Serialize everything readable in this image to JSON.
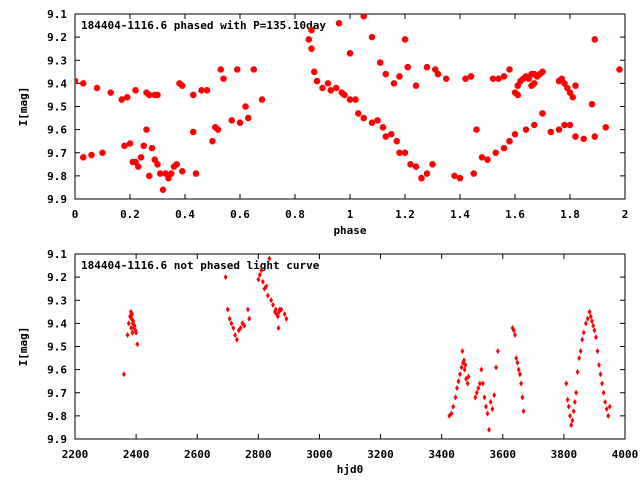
{
  "chart_data": [
    {
      "type": "scatter",
      "title": "184404-1116.6 phased with P=135.10day",
      "xlabel": "phase",
      "ylabel": "I[mag]",
      "xlim": [
        0,
        2
      ],
      "ylim": [
        9.9,
        9.1
      ],
      "y_inverted": true,
      "grid": false,
      "marker_color": "#ff0000",
      "xticks": [
        "0",
        "0.2",
        "0.4",
        "0.6",
        "0.8",
        "1",
        "1.2",
        "1.4",
        "1.6",
        "1.8",
        "2"
      ],
      "yticks": [
        "9.1",
        "9.2",
        "9.3",
        "9.4",
        "9.5",
        "9.6",
        "9.7",
        "9.8",
        "9.9"
      ],
      "points": [
        [
          0.0,
          9.39
        ],
        [
          0.03,
          9.4
        ],
        [
          0.08,
          9.42
        ],
        [
          0.13,
          9.44
        ],
        [
          0.17,
          9.47
        ],
        [
          0.19,
          9.46
        ],
        [
          0.22,
          9.43
        ],
        [
          0.26,
          9.44
        ],
        [
          0.27,
          9.45
        ],
        [
          0.29,
          9.45
        ],
        [
          0.3,
          9.45
        ],
        [
          0.38,
          9.4
        ],
        [
          0.39,
          9.41
        ],
        [
          0.43,
          9.45
        ],
        [
          0.46,
          9.43
        ],
        [
          0.48,
          9.43
        ],
        [
          0.53,
          9.34
        ],
        [
          0.54,
          9.38
        ],
        [
          0.59,
          9.34
        ],
        [
          0.62,
          9.5
        ],
        [
          0.68,
          9.47
        ],
        [
          0.63,
          9.55
        ],
        [
          0.6,
          9.57
        ],
        [
          0.57,
          9.56
        ],
        [
          0.52,
          9.6
        ],
        [
          0.51,
          9.59
        ],
        [
          0.5,
          9.65
        ],
        [
          0.43,
          9.61
        ],
        [
          0.39,
          9.78
        ],
        [
          0.37,
          9.75
        ],
        [
          0.36,
          9.76
        ],
        [
          0.35,
          9.79
        ],
        [
          0.34,
          9.81
        ],
        [
          0.33,
          9.79
        ],
        [
          0.31,
          9.79
        ],
        [
          0.3,
          9.75
        ],
        [
          0.29,
          9.73
        ],
        [
          0.28,
          9.68
        ],
        [
          0.26,
          9.6
        ],
        [
          0.25,
          9.67
        ],
        [
          0.24,
          9.72
        ],
        [
          0.23,
          9.76
        ],
        [
          0.22,
          9.74
        ],
        [
          0.2,
          9.66
        ],
        [
          0.18,
          9.67
        ],
        [
          0.1,
          9.7
        ],
        [
          0.06,
          9.71
        ],
        [
          0.03,
          9.72
        ],
        [
          0.27,
          9.8
        ],
        [
          0.32,
          9.86
        ],
        [
          0.21,
          9.74
        ],
        [
          0.85,
          9.21
        ],
        [
          0.86,
          9.25
        ],
        [
          0.87,
          9.35
        ],
        [
          0.88,
          9.39
        ],
        [
          0.9,
          9.42
        ],
        [
          0.92,
          9.4
        ],
        [
          0.93,
          9.43
        ],
        [
          0.95,
          9.42
        ],
        [
          0.97,
          9.44
        ],
        [
          0.98,
          9.45
        ],
        [
          1.0,
          9.47
        ],
        [
          1.02,
          9.47
        ],
        [
          1.03,
          9.53
        ],
        [
          1.05,
          9.55
        ],
        [
          1.08,
          9.57
        ],
        [
          1.1,
          9.56
        ],
        [
          1.12,
          9.59
        ],
        [
          1.13,
          9.63
        ],
        [
          1.15,
          9.62
        ],
        [
          1.17,
          9.65
        ],
        [
          1.18,
          9.7
        ],
        [
          1.2,
          9.7
        ],
        [
          1.22,
          9.75
        ],
        [
          1.24,
          9.76
        ],
        [
          1.26,
          9.81
        ],
        [
          1.28,
          9.79
        ],
        [
          1.3,
          9.75
        ],
        [
          1.38,
          9.8
        ],
        [
          1.4,
          9.81
        ],
        [
          1.45,
          9.79
        ],
        [
          1.48,
          9.72
        ],
        [
          1.5,
          9.73
        ],
        [
          1.53,
          9.7
        ],
        [
          1.56,
          9.68
        ],
        [
          1.58,
          9.65
        ],
        [
          1.6,
          9.62
        ],
        [
          1.64,
          9.6
        ],
        [
          1.67,
          9.58
        ],
        [
          1.7,
          9.53
        ],
        [
          1.73,
          9.61
        ],
        [
          1.76,
          9.6
        ],
        [
          1.78,
          9.58
        ],
        [
          1.8,
          9.58
        ],
        [
          1.82,
          9.63
        ],
        [
          1.85,
          9.64
        ],
        [
          1.89,
          9.63
        ],
        [
          1.93,
          9.59
        ],
        [
          0.86,
          9.17
        ],
        [
          1.0,
          9.27
        ],
        [
          0.96,
          9.14
        ],
        [
          1.05,
          9.11
        ],
        [
          1.08,
          9.2
        ],
        [
          1.11,
          9.31
        ],
        [
          1.13,
          9.36
        ],
        [
          1.16,
          9.4
        ],
        [
          1.18,
          9.37
        ],
        [
          1.2,
          9.21
        ],
        [
          1.21,
          9.33
        ],
        [
          1.24,
          9.41
        ],
        [
          1.28,
          9.33
        ],
        [
          1.31,
          9.34
        ],
        [
          1.32,
          9.36
        ],
        [
          1.35,
          9.38
        ],
        [
          1.42,
          9.38
        ],
        [
          1.44,
          9.37
        ],
        [
          1.46,
          9.6
        ],
        [
          1.52,
          9.38
        ],
        [
          1.54,
          9.38
        ],
        [
          1.56,
          9.37
        ],
        [
          1.58,
          9.34
        ],
        [
          1.61,
          9.41
        ],
        [
          1.62,
          9.39
        ],
        [
          1.63,
          9.38
        ],
        [
          1.64,
          9.37
        ],
        [
          1.65,
          9.38
        ],
        [
          1.66,
          9.36
        ],
        [
          1.67,
          9.36
        ],
        [
          1.68,
          9.37
        ],
        [
          1.69,
          9.36
        ],
        [
          1.7,
          9.35
        ],
        [
          1.6,
          9.44
        ],
        [
          1.61,
          9.45
        ],
        [
          1.66,
          9.41
        ],
        [
          1.67,
          9.4
        ],
        [
          1.77,
          9.38
        ],
        [
          1.78,
          9.4
        ],
        [
          1.79,
          9.42
        ],
        [
          1.8,
          9.44
        ],
        [
          1.81,
          9.46
        ],
        [
          1.82,
          9.41
        ],
        [
          1.76,
          9.39
        ],
        [
          1.88,
          9.49
        ],
        [
          1.89,
          9.21
        ],
        [
          1.98,
          9.34
        ],
        [
          0.65,
          9.34
        ],
        [
          0.44,
          9.79
        ]
      ]
    },
    {
      "type": "scatter",
      "title": "184404-1116.6 not phased light curve",
      "xlabel": "hjd0",
      "ylabel": "I[mag]",
      "xlim": [
        2200,
        4000
      ],
      "ylim": [
        9.9,
        9.1
      ],
      "y_inverted": true,
      "grid": false,
      "marker_color": "#ff0000",
      "xticks": [
        "2200",
        "2400",
        "2600",
        "2800",
        "3000",
        "3200",
        "3400",
        "3600",
        "3800",
        "4000"
      ],
      "yticks": [
        "9.1",
        "9.2",
        "9.3",
        "9.4",
        "9.5",
        "9.6",
        "9.7",
        "9.8",
        "9.9"
      ],
      "points": [
        [
          2360,
          9.62
        ],
        [
          2372,
          9.45
        ],
        [
          2376,
          9.4
        ],
        [
          2380,
          9.37
        ],
        [
          2383,
          9.35
        ],
        [
          2385,
          9.38
        ],
        [
          2387,
          9.36
        ],
        [
          2389,
          9.4
        ],
        [
          2391,
          9.39
        ],
        [
          2393,
          9.42
        ],
        [
          2395,
          9.41
        ],
        [
          2398,
          9.43
        ],
        [
          2400,
          9.44
        ],
        [
          2404,
          9.49
        ],
        [
          2384,
          9.42
        ],
        [
          2388,
          9.44
        ],
        [
          2693,
          9.2
        ],
        [
          2700,
          9.34
        ],
        [
          2706,
          9.38
        ],
        [
          2712,
          9.4
        ],
        [
          2718,
          9.42
        ],
        [
          2724,
          9.45
        ],
        [
          2730,
          9.47
        ],
        [
          2736,
          9.43
        ],
        [
          2742,
          9.42
        ],
        [
          2748,
          9.4
        ],
        [
          2754,
          9.41
        ],
        [
          2766,
          9.34
        ],
        [
          2770,
          9.38
        ],
        [
          2800,
          9.21
        ],
        [
          2805,
          9.19
        ],
        [
          2810,
          9.17
        ],
        [
          2815,
          9.22
        ],
        [
          2820,
          9.25
        ],
        [
          2826,
          9.24
        ],
        [
          2831,
          9.28
        ],
        [
          2836,
          9.12
        ],
        [
          2842,
          9.3
        ],
        [
          2848,
          9.32
        ],
        [
          2854,
          9.35
        ],
        [
          2857,
          9.34
        ],
        [
          2860,
          9.36
        ],
        [
          2864,
          9.37
        ],
        [
          2868,
          9.35
        ],
        [
          2870,
          9.34
        ],
        [
          2875,
          9.34
        ],
        [
          2866,
          9.42
        ],
        [
          2886,
          9.36
        ],
        [
          2892,
          9.38
        ],
        [
          3425,
          9.8
        ],
        [
          3432,
          9.79
        ],
        [
          3438,
          9.76
        ],
        [
          3445,
          9.72
        ],
        [
          3450,
          9.68
        ],
        [
          3455,
          9.65
        ],
        [
          3460,
          9.62
        ],
        [
          3465,
          9.59
        ],
        [
          3470,
          9.57
        ],
        [
          3475,
          9.6
        ],
        [
          3480,
          9.64
        ],
        [
          3485,
          9.66
        ],
        [
          3468,
          9.52
        ],
        [
          3473,
          9.56
        ],
        [
          3478,
          9.58
        ],
        [
          3488,
          9.63
        ],
        [
          3510,
          9.72
        ],
        [
          3515,
          9.7
        ],
        [
          3520,
          9.68
        ],
        [
          3525,
          9.66
        ],
        [
          3530,
          9.6
        ],
        [
          3535,
          9.66
        ],
        [
          3540,
          9.72
        ],
        [
          3545,
          9.76
        ],
        [
          3550,
          9.79
        ],
        [
          3555,
          9.86
        ],
        [
          3560,
          9.74
        ],
        [
          3566,
          9.77
        ],
        [
          3572,
          9.71
        ],
        [
          3578,
          9.59
        ],
        [
          3584,
          9.52
        ],
        [
          3632,
          9.42
        ],
        [
          3636,
          9.43
        ],
        [
          3640,
          9.45
        ],
        [
          3644,
          9.55
        ],
        [
          3648,
          9.57
        ],
        [
          3652,
          9.6
        ],
        [
          3656,
          9.62
        ],
        [
          3660,
          9.66
        ],
        [
          3664,
          9.72
        ],
        [
          3668,
          9.78
        ],
        [
          3808,
          9.66
        ],
        [
          3812,
          9.73
        ],
        [
          3816,
          9.76
        ],
        [
          3820,
          9.8
        ],
        [
          3824,
          9.84
        ],
        [
          3828,
          9.82
        ],
        [
          3832,
          9.78
        ],
        [
          3836,
          9.74
        ],
        [
          3840,
          9.7
        ],
        [
          3845,
          9.61
        ],
        [
          3850,
          9.55
        ],
        [
          3855,
          9.52
        ],
        [
          3860,
          9.47
        ],
        [
          3865,
          9.44
        ],
        [
          3872,
          9.4
        ],
        [
          3878,
          9.38
        ],
        [
          3884,
          9.35
        ],
        [
          3888,
          9.37
        ],
        [
          3892,
          9.39
        ],
        [
          3896,
          9.41
        ],
        [
          3900,
          9.43
        ],
        [
          3905,
          9.46
        ],
        [
          3910,
          9.52
        ],
        [
          3915,
          9.58
        ],
        [
          3920,
          9.62
        ],
        [
          3925,
          9.66
        ],
        [
          3930,
          9.7
        ],
        [
          3935,
          9.74
        ],
        [
          3940,
          9.77
        ],
        [
          3945,
          9.8
        ],
        [
          3950,
          9.76
        ]
      ]
    }
  ]
}
